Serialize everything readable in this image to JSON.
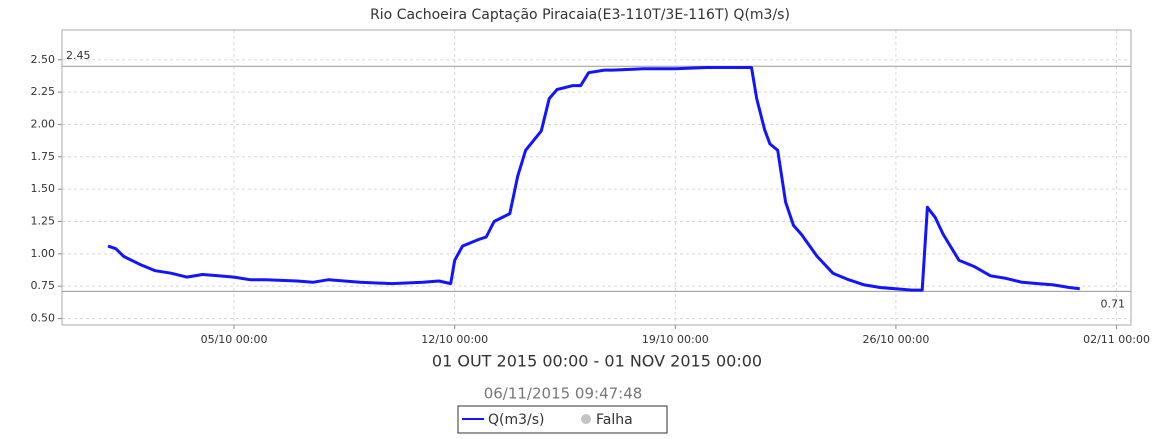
{
  "chart_data": {
    "type": "line",
    "title": "Rio Cachoeira Captação Piracaia(E3-110T/3E-116T) Q(m3/s)",
    "subtitle": "01 OUT 2015 00:00 - 01 NOV 2015 00:00",
    "timestamp": "06/11/2015 09:47:48",
    "x": [
      "01/10 00:00",
      "01/10 06:00",
      "01/10 12:00",
      "02/10 00:00",
      "02/10 12:00",
      "03/10 00:00",
      "03/10 12:00",
      "04/10 00:00",
      "04/10 12:00",
      "05/10 00:00",
      "05/10 12:00",
      "06/10 00:00",
      "07/10 00:00",
      "07/10 12:00",
      "08/10 00:00",
      "09/10 00:00",
      "10/10 00:00",
      "11/10 00:00",
      "11/10 12:00",
      "11/10 21:00",
      "12/10 00:00",
      "12/10 06:00",
      "12/10 18:00",
      "13/10 00:00",
      "13/10 06:00",
      "13/10 18:00",
      "14/10 00:00",
      "14/10 06:00",
      "14/10 18:00",
      "15/10 00:00",
      "15/10 06:00",
      "15/10 18:00",
      "16/10 00:00",
      "16/10 06:00",
      "16/10 18:00",
      "17/10 00:00",
      "18/10 00:00",
      "19/10 00:00",
      "20/10 00:00",
      "21/10 00:00",
      "21/10 10:00",
      "21/10 14:00",
      "21/10 20:00",
      "22/10 00:00",
      "22/10 06:00",
      "22/10 12:00",
      "22/10 18:00",
      "23/10 00:00",
      "23/10 12:00",
      "24/10 00:00",
      "24/10 12:00",
      "25/10 00:00",
      "25/10 12:00",
      "26/10 00:00",
      "26/10 12:00",
      "26/10 20:00",
      "27/10 00:00",
      "27/10 06:00",
      "27/10 12:00",
      "28/10 00:00",
      "28/10 12:00",
      "29/10 00:00",
      "29/10 12:00",
      "30/10 00:00",
      "30/10 12:00",
      "31/10 00:00",
      "31/10 12:00",
      "31/10 20:00"
    ],
    "series": [
      {
        "name": "Q(m3/s)",
        "color": "#1414ff",
        "values": [
          1.06,
          1.04,
          0.98,
          0.92,
          0.87,
          0.85,
          0.82,
          0.84,
          0.83,
          0.82,
          0.8,
          0.8,
          0.79,
          0.78,
          0.8,
          0.78,
          0.77,
          0.78,
          0.79,
          0.77,
          0.95,
          1.06,
          1.11,
          1.13,
          1.25,
          1.31,
          1.6,
          1.8,
          1.95,
          2.2,
          2.27,
          2.3,
          2.3,
          2.4,
          2.42,
          2.42,
          2.43,
          2.43,
          2.44,
          2.44,
          2.44,
          2.2,
          1.96,
          1.85,
          1.8,
          1.4,
          1.22,
          1.15,
          0.98,
          0.85,
          0.8,
          0.76,
          0.74,
          0.73,
          0.72,
          0.72,
          1.36,
          1.28,
          1.15,
          0.95,
          0.9,
          0.83,
          0.81,
          0.78,
          0.77,
          0.76,
          0.74,
          0.73
        ]
      }
    ],
    "legend_extra": {
      "name": "Falha",
      "color": "#c4c4c4"
    },
    "reference_lines": [
      {
        "value": 2.45
      },
      {
        "value": 0.71
      }
    ],
    "xlim": [
      "29/09 13:00",
      "02/11 11:00"
    ],
    "xticks": [
      "05/10 00:00",
      "12/10 00:00",
      "19/10 00:00",
      "26/10 00:00",
      "02/11 00:00"
    ],
    "ylim": [
      0.45,
      2.73
    ],
    "yticks": [
      {
        "value": 0.5,
        "label": "0.50"
      },
      0.75,
      {
        "value": 1,
        "label": "1.00"
      },
      1.25,
      {
        "value": 1.5,
        "label": "1.50"
      },
      1.75,
      {
        "value": 2,
        "label": "2.00"
      },
      2.25,
      {
        "value": 2.5,
        "label": "2.50"
      }
    ],
    "grid": true
  }
}
